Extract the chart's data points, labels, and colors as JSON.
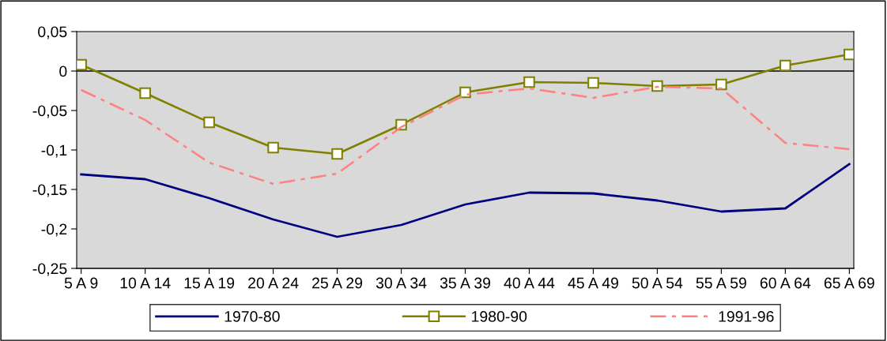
{
  "chart_data": {
    "type": "line",
    "categories": [
      "5 A 9",
      "10 A 14",
      "15 A 19",
      "20 A 24",
      "25 A 29",
      "30 A 34",
      "35 A 39",
      "40 A 44",
      "45 A 49",
      "50 A 54",
      "55 A 59",
      "60 A 64",
      "65 A 69"
    ],
    "series": [
      {
        "name": "1970-80",
        "color": "#000080",
        "marker": "none",
        "line_style": "solid",
        "values": [
          -0.131,
          -0.137,
          -0.161,
          -0.188,
          -0.21,
          -0.195,
          -0.169,
          -0.154,
          -0.155,
          -0.164,
          -0.178,
          -0.174,
          -0.118
        ]
      },
      {
        "name": "1980-90",
        "color": "#808000",
        "marker": "square",
        "line_style": "solid",
        "values": [
          0.008,
          -0.028,
          -0.065,
          -0.097,
          -0.105,
          -0.068,
          -0.027,
          -0.014,
          -0.015,
          -0.019,
          -0.017,
          0.007,
          0.021
        ]
      },
      {
        "name": "1991-96",
        "color": "#ff8080",
        "marker": "none",
        "line_style": "dashdot",
        "values": [
          -0.024,
          -0.062,
          -0.116,
          -0.143,
          -0.13,
          -0.071,
          -0.03,
          -0.022,
          -0.034,
          -0.02,
          -0.022,
          -0.091,
          -0.099
        ]
      }
    ],
    "ylim": [
      -0.25,
      0.05
    ],
    "yticks": [
      {
        "value": 0.05,
        "label": "0,05"
      },
      0,
      {
        "value": -0.05,
        "label": "-0,05"
      },
      {
        "value": -0.1,
        "label": "-0,1"
      },
      {
        "value": -0.15,
        "label": "-0,15"
      },
      {
        "value": -0.2,
        "label": "-0,2"
      },
      {
        "value": -0.25,
        "label": "-0,25"
      }
    ],
    "ref_lines": [
      {
        "axis": "y",
        "value": 0,
        "color": "#000000"
      }
    ],
    "grid": false,
    "legend": "bottom"
  }
}
